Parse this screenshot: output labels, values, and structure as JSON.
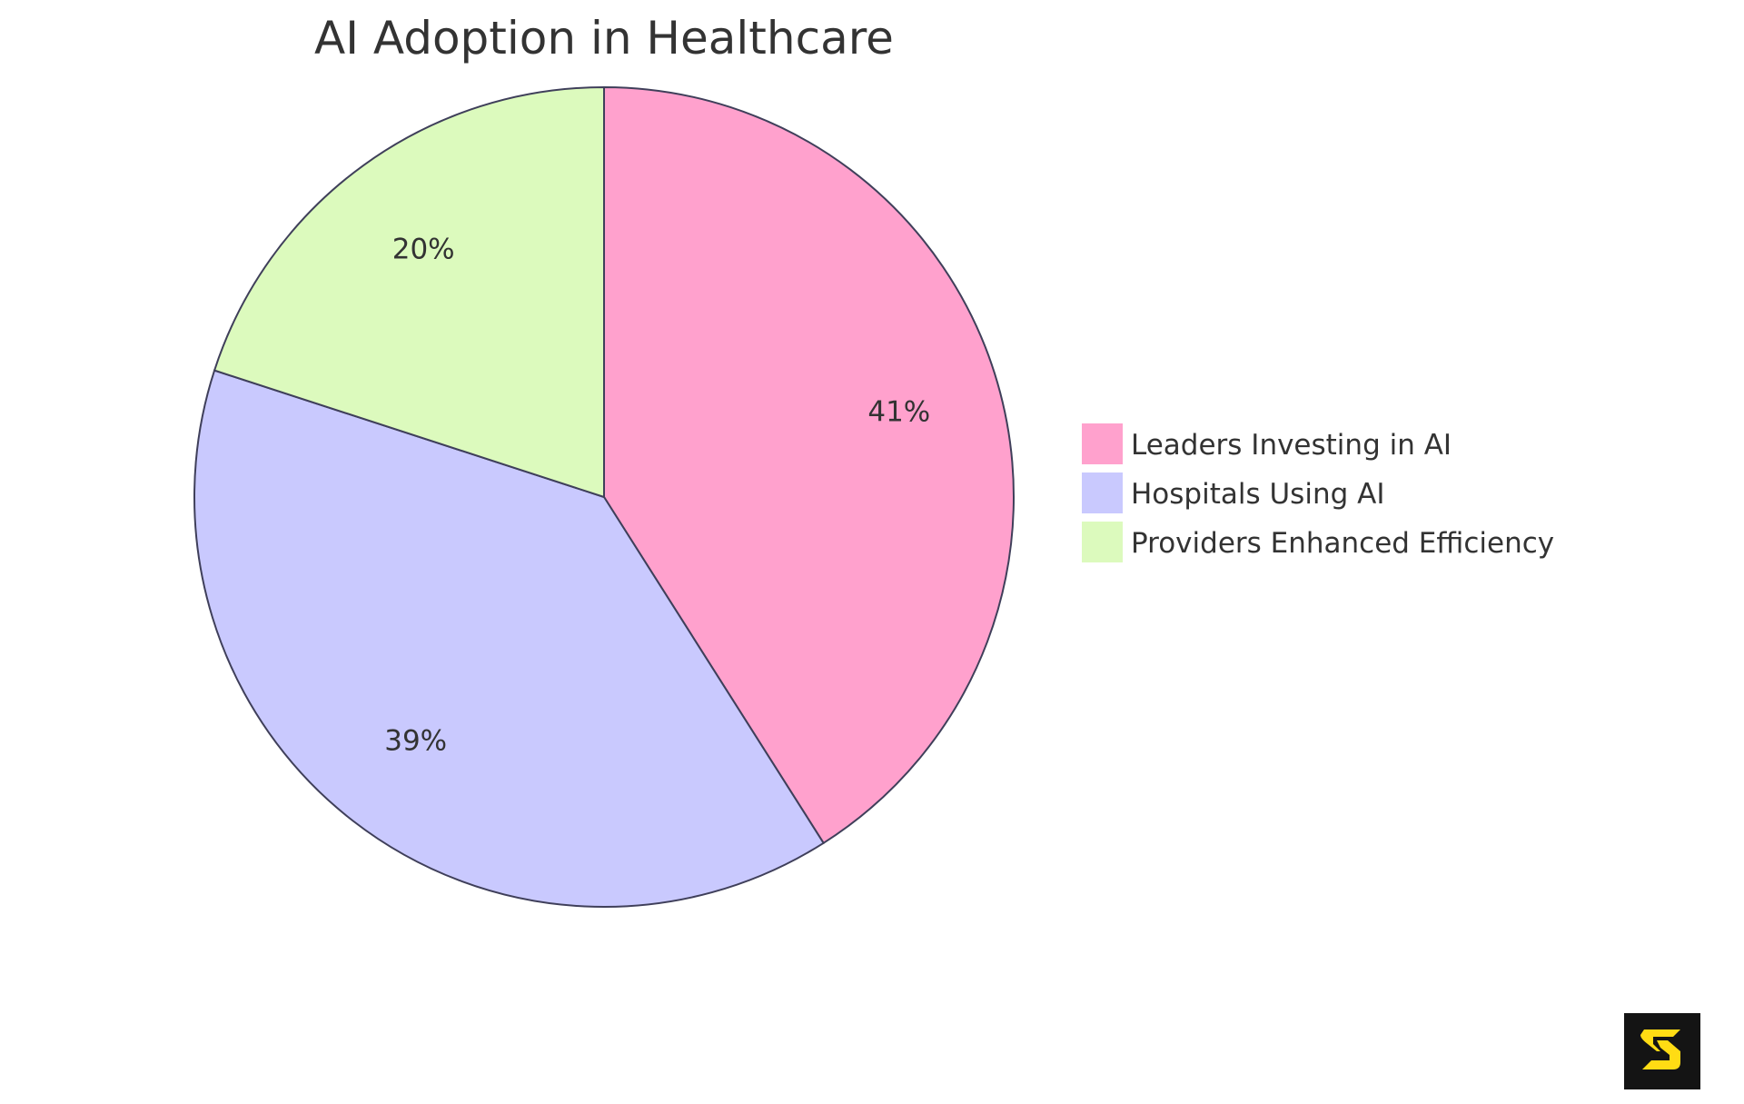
{
  "chart_data": {
    "type": "pie",
    "title": "AI Adoption in Healthcare",
    "slices": [
      {
        "label": "Leaders Investing in AI",
        "value": 41,
        "display": "41%",
        "color": "#FFA1CD"
      },
      {
        "label": "Hospitals Using AI",
        "value": 39,
        "display": "39%",
        "color": "#C9C9FE"
      },
      {
        "label": "Providers Enhanced Efficiency",
        "value": 20,
        "display": "20%",
        "color": "#DCFABD"
      }
    ],
    "legend_position": "right",
    "stroke_color": "#3F3F5A"
  },
  "logo": {
    "name": "s-logo",
    "background": "#141414",
    "color": "#FFDC14"
  }
}
